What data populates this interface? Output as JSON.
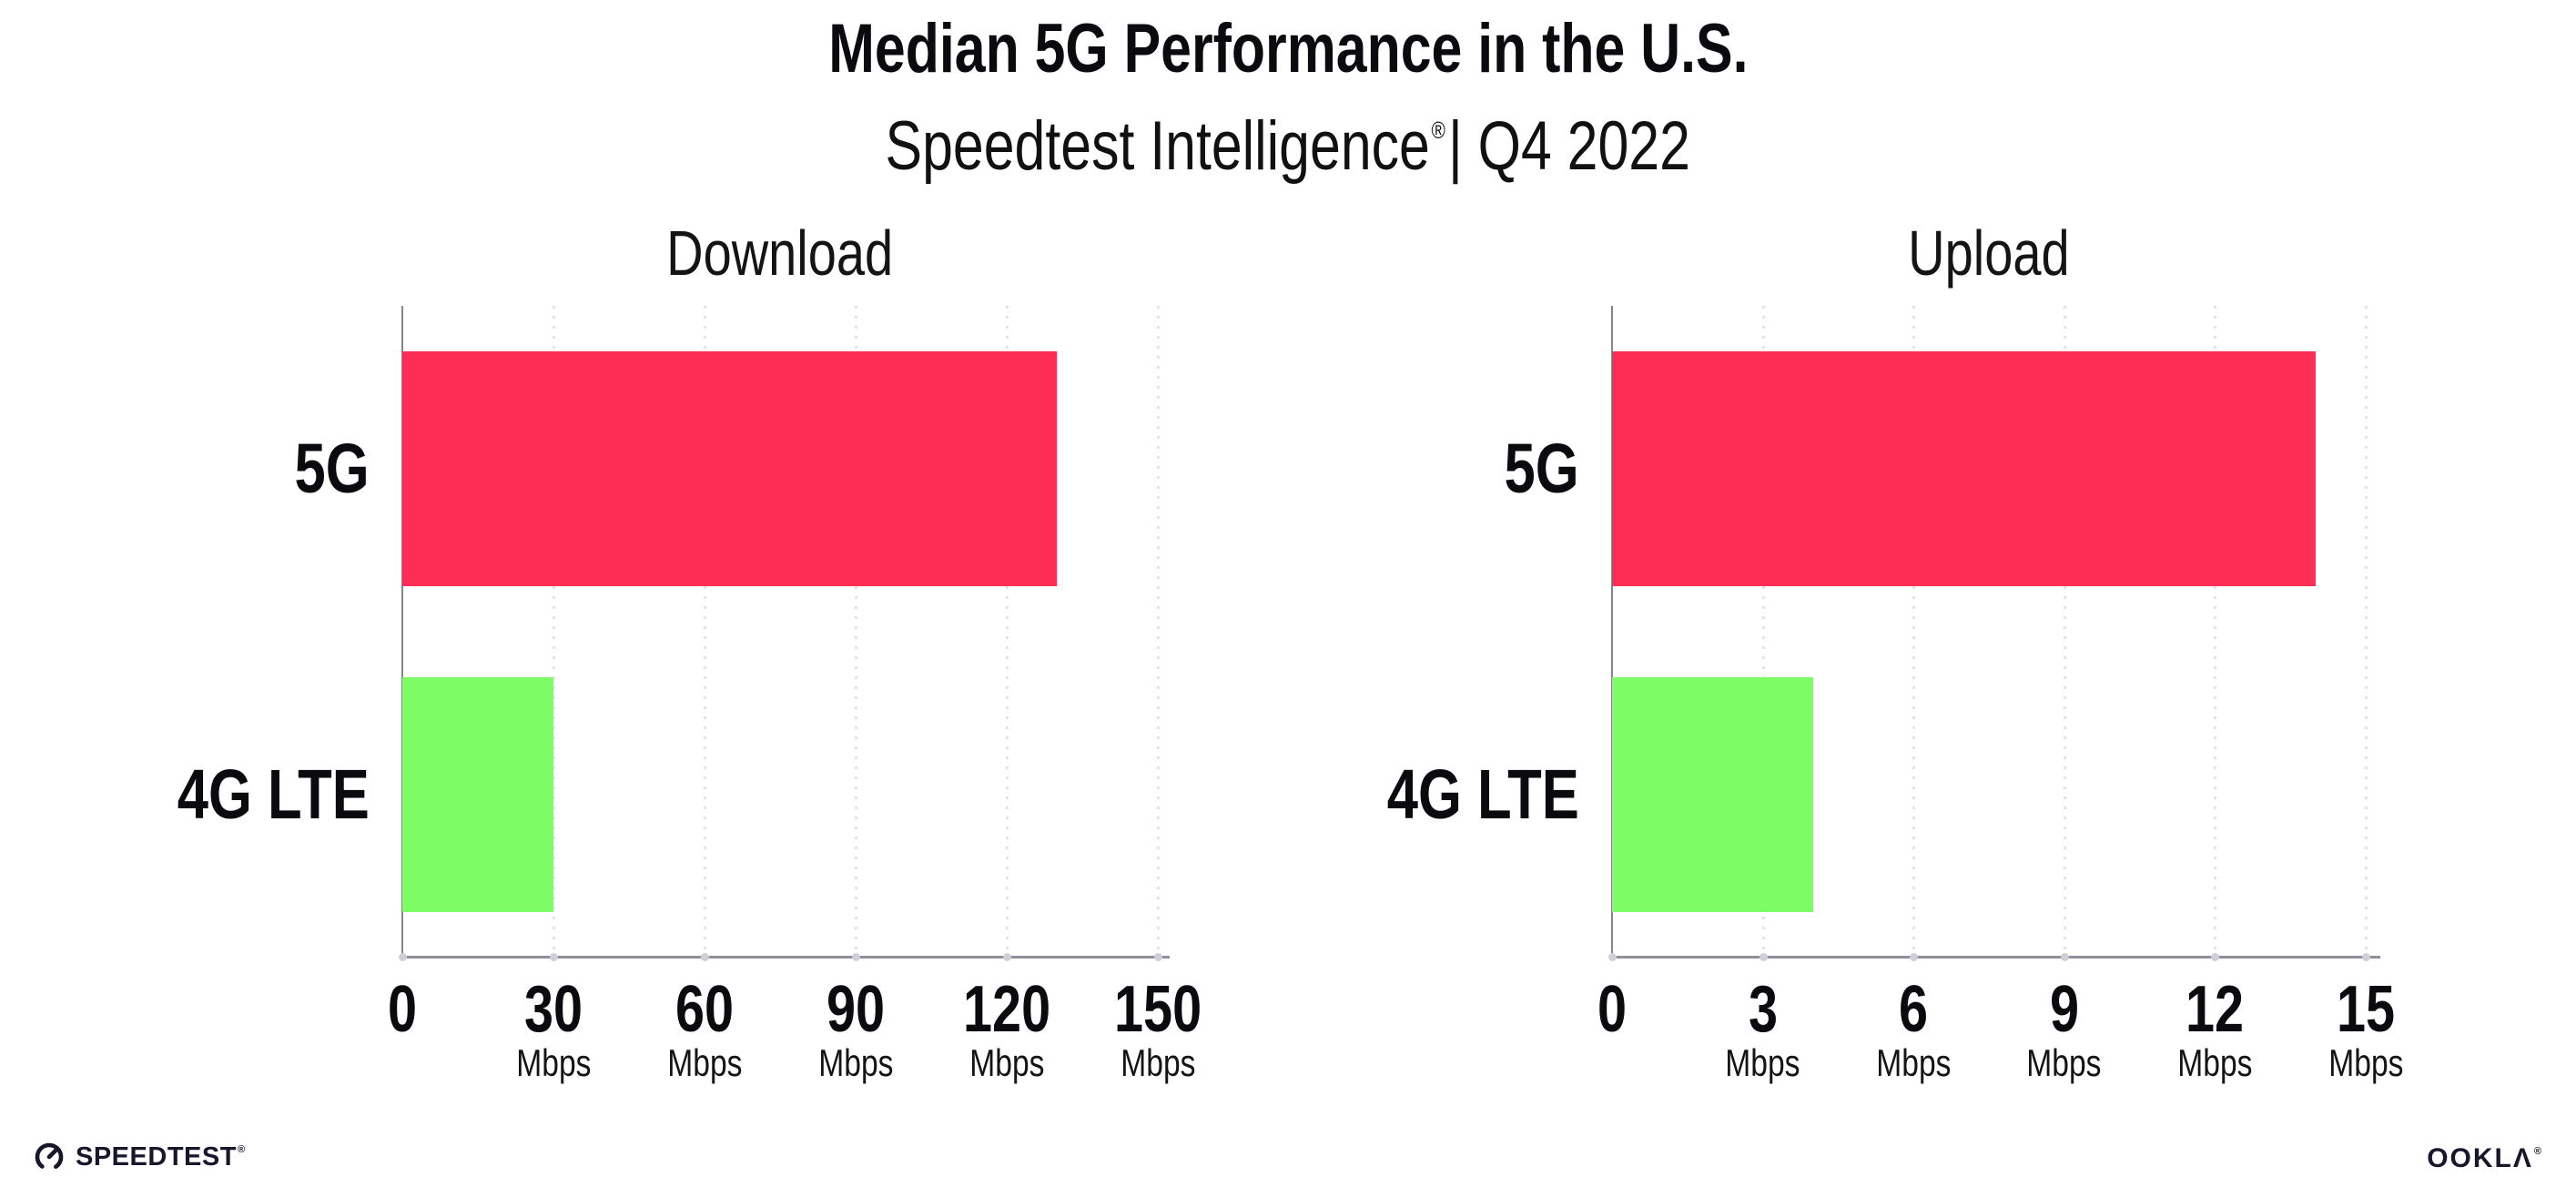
{
  "header": {
    "title": "Median 5G Performance in the U.S.",
    "subtitle_brand": "Speedtest Intelligence",
    "subtitle_reg": "®",
    "subtitle_rest": "| Q4 2022"
  },
  "chart_data": [
    {
      "type": "bar",
      "orientation": "horizontal",
      "title": "Download",
      "categories": [
        "5G",
        "4G LTE"
      ],
      "values": [
        130,
        30
      ],
      "unit": "Mbps",
      "xlabel": "",
      "ylabel": "",
      "xlim": [
        0,
        150
      ],
      "xticks": [
        0,
        30,
        60,
        90,
        120,
        150
      ],
      "bar_colors": [
        "#FE2D56",
        "#7DFC66"
      ],
      "grid": "vertical-dotted",
      "legend_position": "none"
    },
    {
      "type": "bar",
      "orientation": "horizontal",
      "title": "Upload",
      "categories": [
        "5G",
        "4G LTE"
      ],
      "values": [
        14,
        4
      ],
      "unit": "Mbps",
      "xlabel": "",
      "ylabel": "",
      "xlim": [
        0,
        15
      ],
      "xticks": [
        0,
        3,
        6,
        9,
        12,
        15
      ],
      "bar_colors": [
        "#FE2D56",
        "#7DFC66"
      ],
      "grid": "vertical-dotted",
      "legend_position": "none"
    }
  ],
  "footer": {
    "speedtest_label": "SPEEDTEST",
    "speedtest_reg": "®",
    "ookla_label": "OOKLΛ",
    "ookla_reg": "®"
  },
  "colors": {
    "bar_5g": "#FE2D56",
    "bar_4g": "#7DFC66",
    "gridline": "#E2E2EC",
    "axis": "#90909A",
    "text": "#0B0B0F",
    "background": "#FFFFFF"
  }
}
